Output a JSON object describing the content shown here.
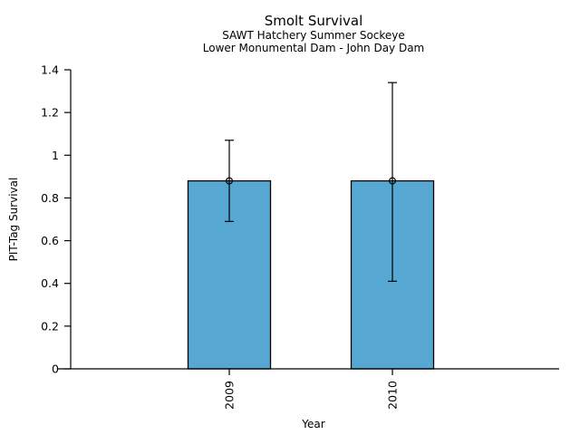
{
  "header": {
    "title": "Smolt Survival",
    "subtitle1": "SAWT Hatchery Summer Sockeye",
    "subtitle2": "Lower Monumental Dam - John Day Dam"
  },
  "chart_data": {
    "type": "bar",
    "title": "Smolt Survival",
    "subtitle1": "SAWT Hatchery Summer Sockeye",
    "subtitle2": "Lower Monumental Dam - John Day Dam",
    "xlabel": "Year",
    "ylabel": "PIT-Tag Survival",
    "categories": [
      "2009",
      "2010"
    ],
    "values": [
      0.88,
      0.88
    ],
    "error_low": [
      0.69,
      0.41
    ],
    "error_high": [
      1.07,
      1.34
    ],
    "ylim": [
      0,
      1.4
    ],
    "yticks": [
      0,
      0.2,
      0.4,
      0.6,
      0.8,
      1,
      1.2,
      1.4
    ],
    "grid": false,
    "legend": "none",
    "marker": "open-circle",
    "bar_color": "#56A8D2",
    "bar_edge_color": "#000000",
    "axis_color": "#000000"
  }
}
